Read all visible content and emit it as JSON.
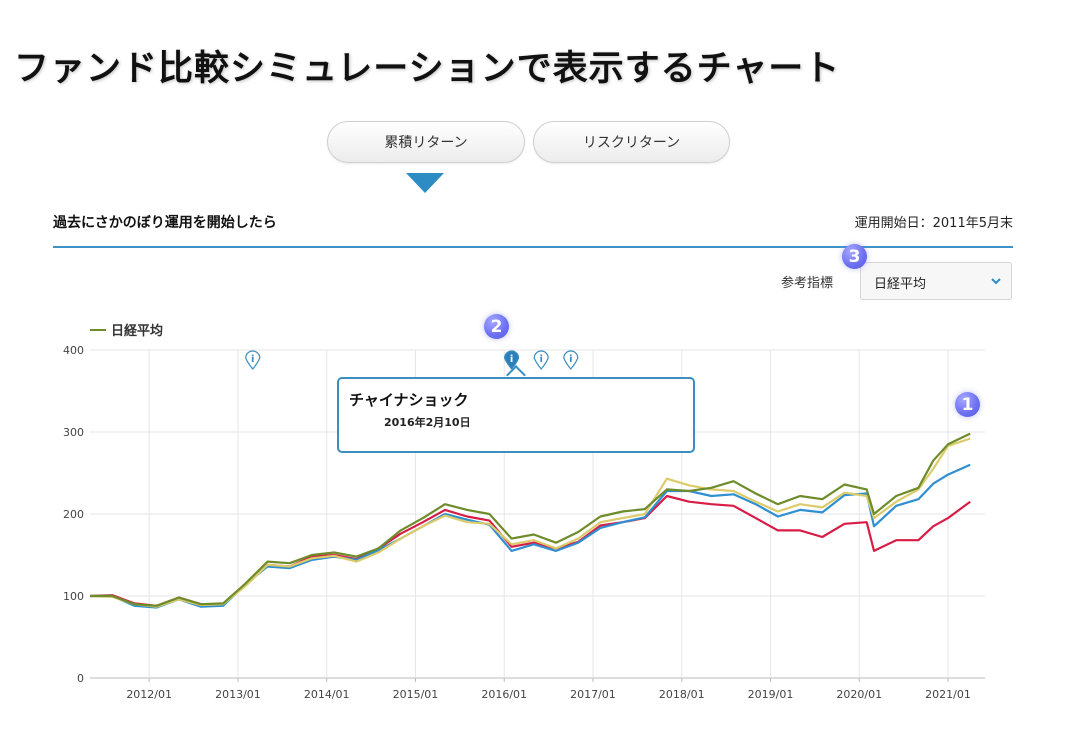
{
  "page": {
    "title": "ファンド比較シミュレーションで表示するチャート"
  },
  "tabs": [
    {
      "label": "累積リターン",
      "active": true
    },
    {
      "label": "リスクリターン",
      "active": false
    }
  ],
  "section": {
    "heading": "過去にさかのぼり運用を開始したら",
    "start_date_label": "運用開始日：",
    "start_date_value": "2011年5月末"
  },
  "reference_index": {
    "label": "参考指標",
    "selected": "日経平均"
  },
  "callouts": [
    "1",
    "2",
    "3"
  ],
  "event_icons": [
    {
      "date": "2013/03",
      "icon": "info-pin-icon",
      "active": false
    },
    {
      "date": "2016/02",
      "icon": "info-pin-icon",
      "active": true
    },
    {
      "date": "2016/06",
      "icon": "info-pin-icon",
      "active": false
    },
    {
      "date": "2016/10",
      "icon": "info-pin-icon",
      "active": false
    }
  ],
  "tooltip": {
    "title": "チャイナショック",
    "date": "2016年2月10日"
  },
  "chart_data": {
    "type": "line",
    "legend": [
      "日経平均"
    ],
    "ylim": [
      0,
      400
    ],
    "y_ticks": [
      "0",
      "100",
      "200",
      "300",
      "400"
    ],
    "x_ticks": [
      "2012/01",
      "2013/01",
      "2014/01",
      "2015/01",
      "2016/01",
      "2017/01",
      "2018/01",
      "2019/01",
      "2020/01",
      "2021/01"
    ],
    "grid": true,
    "colors": {
      "olive": "#6e8c2a",
      "yellow": "#dccb6a",
      "blue": "#2f8fd0",
      "red": "#d81c46"
    },
    "series": [
      {
        "name": "日経平均",
        "color": "#6e8c2a",
        "points": [
          [
            "2011/05",
            100
          ],
          [
            "2011/08",
            100
          ],
          [
            "2011/11",
            90
          ],
          [
            "2012/02",
            88
          ],
          [
            "2012/05",
            98
          ],
          [
            "2012/08",
            90
          ],
          [
            "2012/11",
            91
          ],
          [
            "2013/02",
            115
          ],
          [
            "2013/05",
            142
          ],
          [
            "2013/08",
            140
          ],
          [
            "2013/11",
            150
          ],
          [
            "2014/02",
            153
          ],
          [
            "2014/05",
            148
          ],
          [
            "2014/08",
            158
          ],
          [
            "2014/11",
            180
          ],
          [
            "2015/02",
            195
          ],
          [
            "2015/05",
            212
          ],
          [
            "2015/08",
            205
          ],
          [
            "2015/11",
            200
          ],
          [
            "2016/02",
            170
          ],
          [
            "2016/05",
            175
          ],
          [
            "2016/08",
            165
          ],
          [
            "2016/11",
            178
          ],
          [
            "2017/02",
            197
          ],
          [
            "2017/05",
            203
          ],
          [
            "2017/08",
            206
          ],
          [
            "2017/11",
            230
          ],
          [
            "2018/02",
            228
          ],
          [
            "2018/05",
            232
          ],
          [
            "2018/08",
            240
          ],
          [
            "2018/11",
            225
          ],
          [
            "2019/02",
            212
          ],
          [
            "2019/05",
            222
          ],
          [
            "2019/08",
            218
          ],
          [
            "2019/11",
            236
          ],
          [
            "2020/02",
            230
          ],
          [
            "2020/03",
            200
          ],
          [
            "2020/06",
            222
          ],
          [
            "2020/09",
            232
          ],
          [
            "2020/11",
            265
          ],
          [
            "2021/01",
            285
          ],
          [
            "2021/04",
            298
          ]
        ]
      },
      {
        "color": "#dccb6a",
        "points": [
          [
            "2011/05",
            100
          ],
          [
            "2011/08",
            99
          ],
          [
            "2011/11",
            90
          ],
          [
            "2012/02",
            87
          ],
          [
            "2012/05",
            96
          ],
          [
            "2012/08",
            89
          ],
          [
            "2012/11",
            90
          ],
          [
            "2013/02",
            112
          ],
          [
            "2013/05",
            138
          ],
          [
            "2013/08",
            136
          ],
          [
            "2013/11",
            146
          ],
          [
            "2014/02",
            149
          ],
          [
            "2014/05",
            142
          ],
          [
            "2014/08",
            153
          ],
          [
            "2014/11",
            170
          ],
          [
            "2015/02",
            185
          ],
          [
            "2015/05",
            198
          ],
          [
            "2015/08",
            190
          ],
          [
            "2015/11",
            188
          ],
          [
            "2016/02",
            163
          ],
          [
            "2016/05",
            168
          ],
          [
            "2016/08",
            158
          ],
          [
            "2016/11",
            170
          ],
          [
            "2017/02",
            190
          ],
          [
            "2017/05",
            195
          ],
          [
            "2017/08",
            200
          ],
          [
            "2017/11",
            243
          ],
          [
            "2018/02",
            235
          ],
          [
            "2018/05",
            230
          ],
          [
            "2018/08",
            228
          ],
          [
            "2018/11",
            215
          ],
          [
            "2019/02",
            203
          ],
          [
            "2019/05",
            212
          ],
          [
            "2019/08",
            208
          ],
          [
            "2019/11",
            226
          ],
          [
            "2020/02",
            222
          ],
          [
            "2020/03",
            195
          ],
          [
            "2020/06",
            215
          ],
          [
            "2020/09",
            230
          ],
          [
            "2020/11",
            255
          ],
          [
            "2021/01",
            283
          ],
          [
            "2021/04",
            292
          ]
        ]
      },
      {
        "color": "#2f8fd0",
        "points": [
          [
            "2011/05",
            100
          ],
          [
            "2011/08",
            100
          ],
          [
            "2011/11",
            88
          ],
          [
            "2012/02",
            86
          ],
          [
            "2012/05",
            96
          ],
          [
            "2012/08",
            87
          ],
          [
            "2012/11",
            88
          ],
          [
            "2013/02",
            114
          ],
          [
            "2013/05",
            136
          ],
          [
            "2013/08",
            134
          ],
          [
            "2013/11",
            144
          ],
          [
            "2014/02",
            148
          ],
          [
            "2014/05",
            144
          ],
          [
            "2014/08",
            156
          ],
          [
            "2014/11",
            170
          ],
          [
            "2015/02",
            185
          ],
          [
            "2015/05",
            200
          ],
          [
            "2015/08",
            193
          ],
          [
            "2015/11",
            187
          ],
          [
            "2016/02",
            155
          ],
          [
            "2016/05",
            163
          ],
          [
            "2016/08",
            155
          ],
          [
            "2016/11",
            165
          ],
          [
            "2017/02",
            183
          ],
          [
            "2017/05",
            190
          ],
          [
            "2017/08",
            196
          ],
          [
            "2017/11",
            228
          ],
          [
            "2018/02",
            228
          ],
          [
            "2018/05",
            222
          ],
          [
            "2018/08",
            224
          ],
          [
            "2018/11",
            212
          ],
          [
            "2019/02",
            197
          ],
          [
            "2019/05",
            205
          ],
          [
            "2019/08",
            202
          ],
          [
            "2019/11",
            223
          ],
          [
            "2020/02",
            225
          ],
          [
            "2020/03",
            185
          ],
          [
            "2020/06",
            210
          ],
          [
            "2020/09",
            218
          ],
          [
            "2020/11",
            237
          ],
          [
            "2021/01",
            248
          ],
          [
            "2021/04",
            260
          ]
        ]
      },
      {
        "color": "#d81c46",
        "points": [
          [
            "2011/05",
            100
          ],
          [
            "2011/08",
            101
          ],
          [
            "2011/11",
            91
          ],
          [
            "2012/02",
            88
          ],
          [
            "2012/05",
            98
          ],
          [
            "2012/08",
            90
          ],
          [
            "2012/11",
            90
          ],
          [
            "2013/02",
            114
          ],
          [
            "2013/05",
            138
          ],
          [
            "2013/08",
            136
          ],
          [
            "2013/11",
            148
          ],
          [
            "2014/02",
            150
          ],
          [
            "2014/05",
            145
          ],
          [
            "2014/08",
            158
          ],
          [
            "2014/11",
            176
          ],
          [
            "2015/02",
            190
          ],
          [
            "2015/05",
            205
          ],
          [
            "2015/08",
            197
          ],
          [
            "2015/11",
            192
          ],
          [
            "2016/02",
            160
          ],
          [
            "2016/05",
            165
          ],
          [
            "2016/08",
            158
          ],
          [
            "2016/11",
            166
          ],
          [
            "2017/02",
            186
          ],
          [
            "2017/05",
            190
          ],
          [
            "2017/08",
            195
          ],
          [
            "2017/11",
            222
          ],
          [
            "2018/02",
            215
          ],
          [
            "2018/05",
            212
          ],
          [
            "2018/08",
            210
          ],
          [
            "2018/11",
            195
          ],
          [
            "2019/02",
            180
          ],
          [
            "2019/05",
            180
          ],
          [
            "2019/08",
            172
          ],
          [
            "2019/11",
            188
          ],
          [
            "2020/02",
            190
          ],
          [
            "2020/03",
            155
          ],
          [
            "2020/06",
            168
          ],
          [
            "2020/09",
            168
          ],
          [
            "2020/11",
            185
          ],
          [
            "2021/01",
            195
          ],
          [
            "2021/04",
            215
          ]
        ]
      }
    ]
  }
}
